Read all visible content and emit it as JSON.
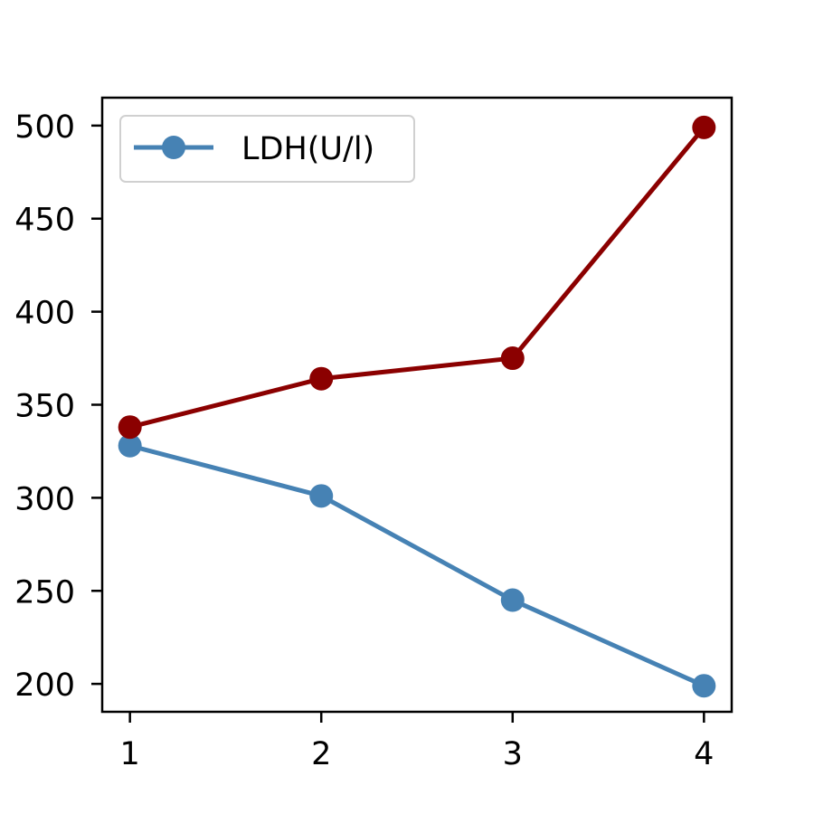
{
  "chart_data": {
    "type": "line",
    "x": [
      1,
      2,
      3,
      4
    ],
    "xticks": [
      "1",
      "2",
      "3",
      "4"
    ],
    "yticks": [
      "200",
      "250",
      "300",
      "350",
      "400",
      "450",
      "500"
    ],
    "xlim": [
      0.855,
      4.145
    ],
    "ylim": [
      185,
      515
    ],
    "grid": false,
    "legend_position": "top-left",
    "series": [
      {
        "name": "LDH(U/l)",
        "color": "#4682b4",
        "values": [
          328,
          301,
          245,
          199
        ]
      },
      {
        "color": "#8b0000",
        "values": [
          338,
          364,
          375,
          499
        ]
      }
    ]
  }
}
